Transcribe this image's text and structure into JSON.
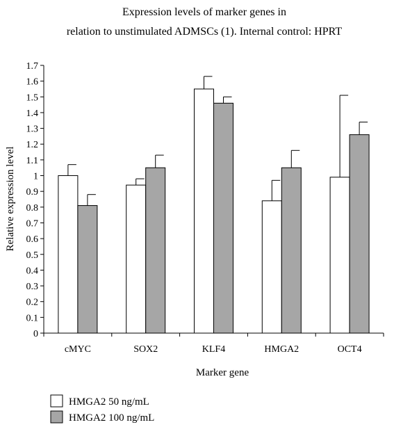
{
  "chart_data": {
    "type": "bar",
    "title_lines": [
      "Expression levels of marker genes in",
      "relation to unstimulated ADMSCs (1). Internal control: HPRT"
    ],
    "xlabel": "Marker gene",
    "ylabel": "Relative expression level",
    "categories": [
      "cMYC",
      "SOX2",
      "KLF4",
      "HMGA2",
      "OCT4"
    ],
    "ylim": [
      0,
      1.7
    ],
    "yticks": [
      "0",
      "0.1",
      "0.2",
      "0.3",
      "0.4",
      "0.5",
      "0.6",
      "0.7",
      "0.8",
      "0.9",
      "1",
      "1.1",
      "1.2",
      "1.3",
      "1.4",
      "1.5",
      "1.6",
      "1.7"
    ],
    "grid": false,
    "legend_position": "bottom-left",
    "series": [
      {
        "name": "HMGA2 50 ng/mL",
        "color": "#ffffff",
        "values": [
          1.0,
          0.94,
          1.55,
          0.84,
          0.99
        ],
        "errors": [
          0.07,
          0.04,
          0.08,
          0.13,
          0.52
        ]
      },
      {
        "name": "HMGA2 100 ng/mL",
        "color": "#a6a6a6",
        "values": [
          0.81,
          1.05,
          1.46,
          1.05,
          1.26
        ],
        "errors": [
          0.07,
          0.08,
          0.04,
          0.11,
          0.08
        ]
      }
    ]
  }
}
